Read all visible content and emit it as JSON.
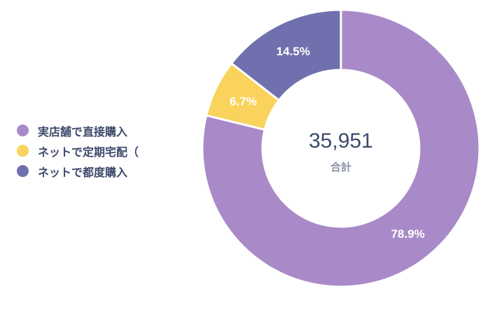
{
  "chart_data": {
    "type": "pie",
    "donut": true,
    "categories": [
      "実店舗で直接購入",
      "ネットで定期宅配（",
      "ネットで都度購入"
    ],
    "values": [
      78.9,
      6.7,
      14.5
    ],
    "labels": [
      "78.9%",
      "6.7%",
      "14.5%"
    ],
    "colors": [
      "#A98AC8",
      "#F9D35B",
      "#7170AE"
    ],
    "center_value": "35,951",
    "center_label": "合計",
    "legend_position": "left"
  }
}
